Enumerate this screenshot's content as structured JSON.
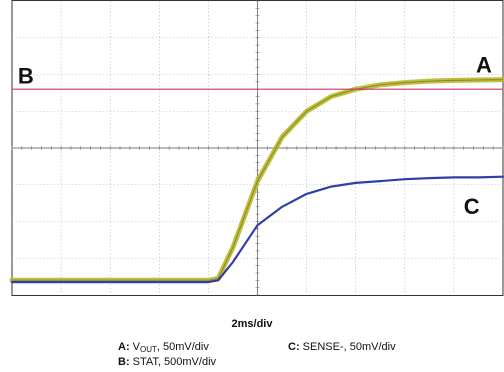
{
  "chart_data": {
    "type": "line",
    "x_unit_label": "2ms/div",
    "x_divisions": 10,
    "y_divisions": 8,
    "grid": true,
    "x": [
      0,
      0.5,
      1,
      1.5,
      2,
      2.5,
      3,
      3.5,
      4,
      4.2,
      4.5,
      5,
      5.5,
      6,
      6.5,
      7,
      7.5,
      8,
      8.5,
      9,
      9.5,
      10
    ],
    "series": [
      {
        "name": "A",
        "color": "#b8b82a",
        "values": [
          0.4,
          0.4,
          0.4,
          0.4,
          0.4,
          0.4,
          0.4,
          0.4,
          0.4,
          0.45,
          1.3,
          3.1,
          4.3,
          5.0,
          5.4,
          5.6,
          5.72,
          5.78,
          5.82,
          5.84,
          5.85,
          5.86
        ]
      },
      {
        "name": "B",
        "color": "#d03070",
        "values": [
          5.6,
          5.6,
          5.6,
          5.6,
          5.6,
          5.6,
          5.6,
          5.6,
          5.6,
          5.6,
          5.6,
          5.6,
          5.6,
          5.6,
          5.6,
          5.6,
          5.6,
          5.6,
          5.6,
          5.6,
          5.6,
          5.6
        ]
      },
      {
        "name": "C",
        "color": "#3040a8",
        "values": [
          0.35,
          0.35,
          0.35,
          0.35,
          0.35,
          0.35,
          0.35,
          0.35,
          0.35,
          0.4,
          0.9,
          1.9,
          2.4,
          2.75,
          2.95,
          3.05,
          3.1,
          3.15,
          3.18,
          3.2,
          3.2,
          3.22
        ]
      }
    ],
    "trace_labels": [
      "A",
      "B",
      "C"
    ]
  },
  "timebase": "2ms/div",
  "legend": {
    "a_key": "A:",
    "a_text_pre": "V",
    "a_text_sub": "OUT",
    "a_text_post": ", 50mV/div",
    "b_key": "B:",
    "b_text": "STAT, 500mV/div",
    "c_key": "C:",
    "c_text": "SENSE-, 50mV/div"
  }
}
